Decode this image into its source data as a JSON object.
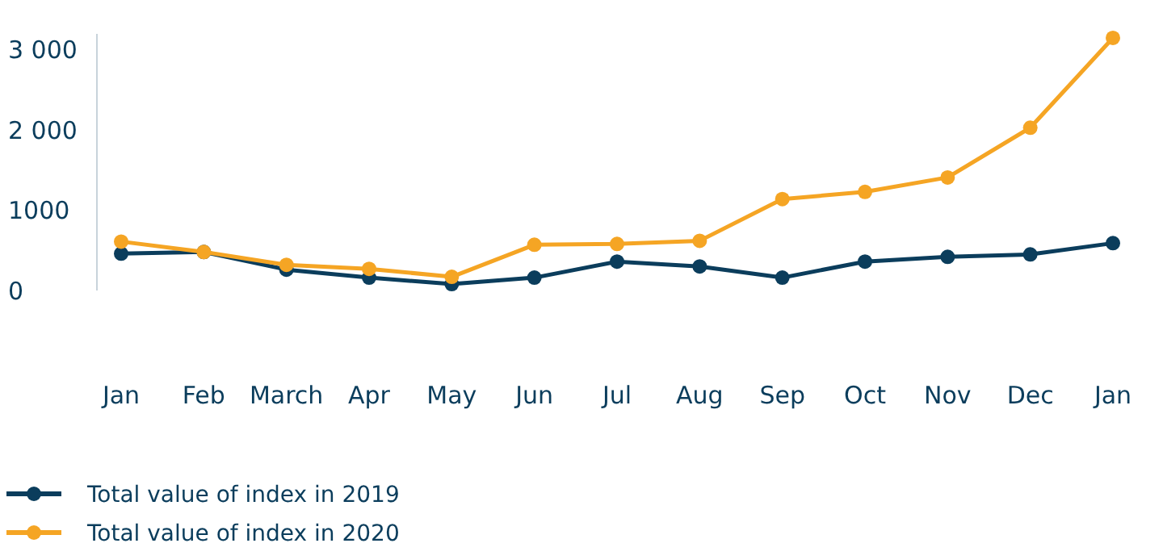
{
  "chart_data": {
    "type": "line",
    "categories": [
      "Jan",
      "Feb",
      "March",
      "Apr",
      "May",
      "Jun",
      "Jul",
      "Aug",
      "Sep",
      "Oct",
      "Nov",
      "Dec",
      "Jan"
    ],
    "series": [
      {
        "name": "Total value of index in 2019",
        "color": "#0b3d5c",
        "values": [
          460,
          480,
          260,
          160,
          80,
          160,
          360,
          300,
          160,
          360,
          420,
          450,
          590
        ]
      },
      {
        "name": "Total value of index in 2020",
        "color": "#f5a524",
        "values": [
          610,
          480,
          320,
          270,
          170,
          570,
          580,
          620,
          1140,
          1230,
          1410,
          2030,
          3150
        ]
      }
    ],
    "ylim": [
      0,
      3200
    ],
    "yticks": [
      0,
      1000,
      {
        "value": 2000,
        "label": "2 000"
      },
      {
        "value": 3000,
        "label": "3 000"
      }
    ],
    "grid": false,
    "legend": "bottom left",
    "marker": "circle",
    "line_style": "solid"
  }
}
